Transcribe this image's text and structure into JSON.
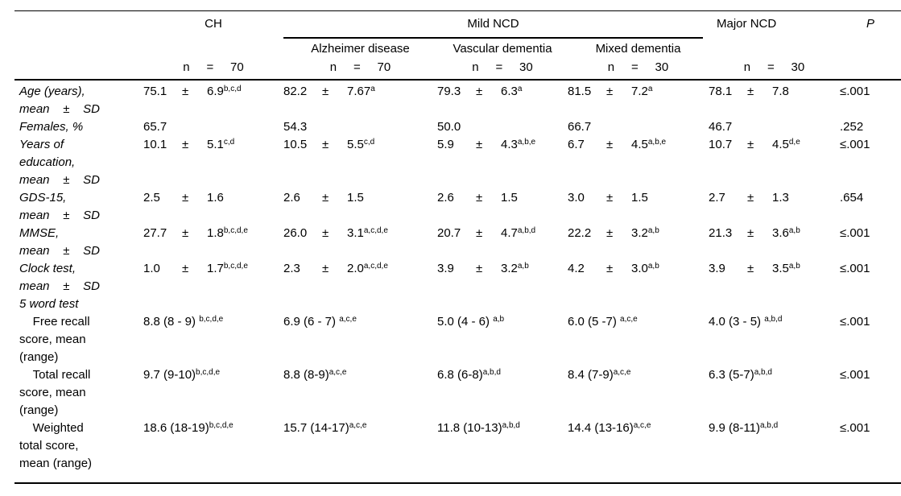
{
  "table": {
    "header": {
      "ch": "CH",
      "mild_ncd": "Mild NCD",
      "major_ncd": "Major NCD",
      "p": "P",
      "sub": [
        "Alzheimer disease",
        "Vascular dementia",
        "Mixed dementia"
      ],
      "n_values": [
        "n     =     70",
        "n     =     70",
        "n     =     30",
        "n     =     30",
        "n     =     30"
      ]
    },
    "rows": [
      {
        "label": "Age (years),\nmean    ±    SD",
        "italic": true,
        "cells": [
          {
            "mean": "75.1",
            "sd": "6.9",
            "sup": "b,c,d"
          },
          {
            "mean": "82.2",
            "sd": "7.67",
            "sup": "a"
          },
          {
            "mean": "79.3",
            "sd": "6.3",
            "sup": "a"
          },
          {
            "mean": "81.5",
            "sd": "7.2",
            "sup": "a"
          },
          {
            "mean": "78.1",
            "sd": "7.8",
            "sup": ""
          }
        ],
        "p": "≤.001"
      },
      {
        "label": "Females, %",
        "italic": true,
        "cells": [
          {
            "text": "65.7",
            "sup": ""
          },
          {
            "text": "54.3",
            "sup": ""
          },
          {
            "text": "50.0",
            "sup": ""
          },
          {
            "text": "66.7",
            "sup": ""
          },
          {
            "text": "46.7",
            "sup": ""
          }
        ],
        "p": ".252"
      },
      {
        "label": "Years of\neducation,\nmean    ±    SD",
        "italic": true,
        "cells": [
          {
            "mean": "10.1",
            "sd": "5.1",
            "sup": "c,d"
          },
          {
            "mean": "10.5",
            "sd": "5.5",
            "sup": "c,d"
          },
          {
            "mean": "5.9",
            "sd": "4.3",
            "sup": "a,b,e"
          },
          {
            "mean": "6.7",
            "sd": "4.5",
            "sup": "a,b,e"
          },
          {
            "mean": "10.7",
            "sd": "4.5",
            "sup": "d,e"
          }
        ],
        "p": "≤.001"
      },
      {
        "label": "GDS-15,\nmean    ±    SD",
        "italic": true,
        "cells": [
          {
            "mean": "2.5",
            "sd": "1.6",
            "sup": ""
          },
          {
            "mean": "2.6",
            "sd": "1.5",
            "sup": ""
          },
          {
            "mean": "2.6",
            "sd": "1.5",
            "sup": ""
          },
          {
            "mean": "3.0",
            "sd": "1.5",
            "sup": ""
          },
          {
            "mean": "2.7",
            "sd": "1.3",
            "sup": ""
          }
        ],
        "p": ".654"
      },
      {
        "label": "MMSE,\nmean    ±    SD",
        "italic": true,
        "cells": [
          {
            "mean": "27.7",
            "sd": "1.8",
            "sup": "b,c,d,e"
          },
          {
            "mean": "26.0",
            "sd": "3.1",
            "sup": "a,c,d,e"
          },
          {
            "mean": "20.7",
            "sd": "4.7",
            "sup": "a,b,d"
          },
          {
            "mean": "22.2",
            "sd": "3.2",
            "sup": "a,b"
          },
          {
            "mean": "21.3",
            "sd": "3.6",
            "sup": "a,b"
          }
        ],
        "p": "≤.001"
      },
      {
        "label": "Clock test,\nmean    ±    SD",
        "italic": true,
        "cells": [
          {
            "mean": "1.0",
            "sd": "1.7",
            "sup": "b,c,d,e"
          },
          {
            "mean": "2.3",
            "sd": "2.0",
            "sup": "a,c,d,e"
          },
          {
            "mean": "3.9",
            "sd": "3.2",
            "sup": "a,b"
          },
          {
            "mean": "4.2",
            "sd": "3.0",
            "sup": "a,b"
          },
          {
            "mean": "3.9",
            "sd": "3.5",
            "sup": "a,b"
          }
        ],
        "p": "≤.001"
      },
      {
        "label": "5 word test",
        "italic": true,
        "cells": [
          null,
          null,
          null,
          null,
          null
        ],
        "p": ""
      },
      {
        "label": "    Free recall\nscore, mean\n(range)",
        "italic": false,
        "cells": [
          {
            "text": "8.8 (8 - 9) ",
            "sup": "b,c,d,e"
          },
          {
            "text": "6.9 (6 - 7) ",
            "sup": "a,c,e"
          },
          {
            "text": "5.0 (4 - 6) ",
            "sup": "a,b"
          },
          {
            "text": "6.0 (5 -7) ",
            "sup": "a,c,e"
          },
          {
            "text": "4.0 (3 - 5) ",
            "sup": "a,b,d"
          }
        ],
        "p": "≤.001"
      },
      {
        "label": "    Total recall\nscore, mean\n(range)",
        "italic": false,
        "cells": [
          {
            "text": "9.7 (9-10)",
            "sup": "b,c,d,e"
          },
          {
            "text": "8.8 (8-9)",
            "sup": "a,c,e"
          },
          {
            "text": "6.8 (6-8)",
            "sup": "a,b,d"
          },
          {
            "text": "8.4 (7-9)",
            "sup": "a,c,e"
          },
          {
            "text": "6.3 (5-7)",
            "sup": "a,b,d"
          }
        ],
        "p": "≤.001"
      },
      {
        "label": "    Weighted\ntotal score,\nmean (range)",
        "italic": false,
        "cells": [
          {
            "text": "18.6 (18-19)",
            "sup": "b,c,d,e"
          },
          {
            "text": "15.7 (14-17)",
            "sup": "a,c,e"
          },
          {
            "text": "11.8 (10-13)",
            "sup": "a,b,d"
          },
          {
            "text": "14.4 (13-16)",
            "sup": "a,c,e"
          },
          {
            "text": "9.9 (8-11)",
            "sup": "a,b,d"
          }
        ],
        "p": "≤.001"
      }
    ]
  }
}
